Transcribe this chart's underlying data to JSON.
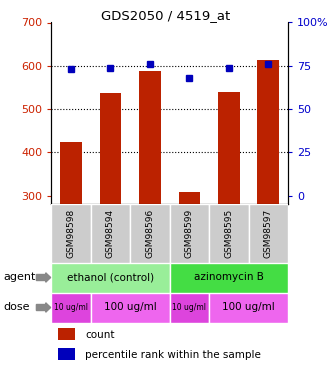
{
  "title": "GDS2050 / 4519_at",
  "samples": [
    "GSM98598",
    "GSM98594",
    "GSM98596",
    "GSM98599",
    "GSM98595",
    "GSM98597"
  ],
  "counts": [
    425,
    537,
    588,
    308,
    540,
    613
  ],
  "percentiles": [
    73,
    74,
    76,
    68,
    74,
    76
  ],
  "y_min": 280,
  "y_max": 700,
  "y_ticks": [
    300,
    400,
    500,
    600,
    700
  ],
  "bar_color": "#bb2200",
  "dot_color": "#0000bb",
  "bar_width": 0.55,
  "agent_color_ethanol": "#99ee99",
  "agent_color_azino": "#44dd44",
  "dose_color_small": "#dd44dd",
  "dose_color_large": "#ee66ee",
  "legend_count_color": "#bb2200",
  "legend_pct_color": "#0000bb",
  "tick_label_color_left": "#cc2200",
  "tick_label_color_right": "#0000cc",
  "sample_box_color": "#cccccc",
  "background_color": "#ffffff"
}
